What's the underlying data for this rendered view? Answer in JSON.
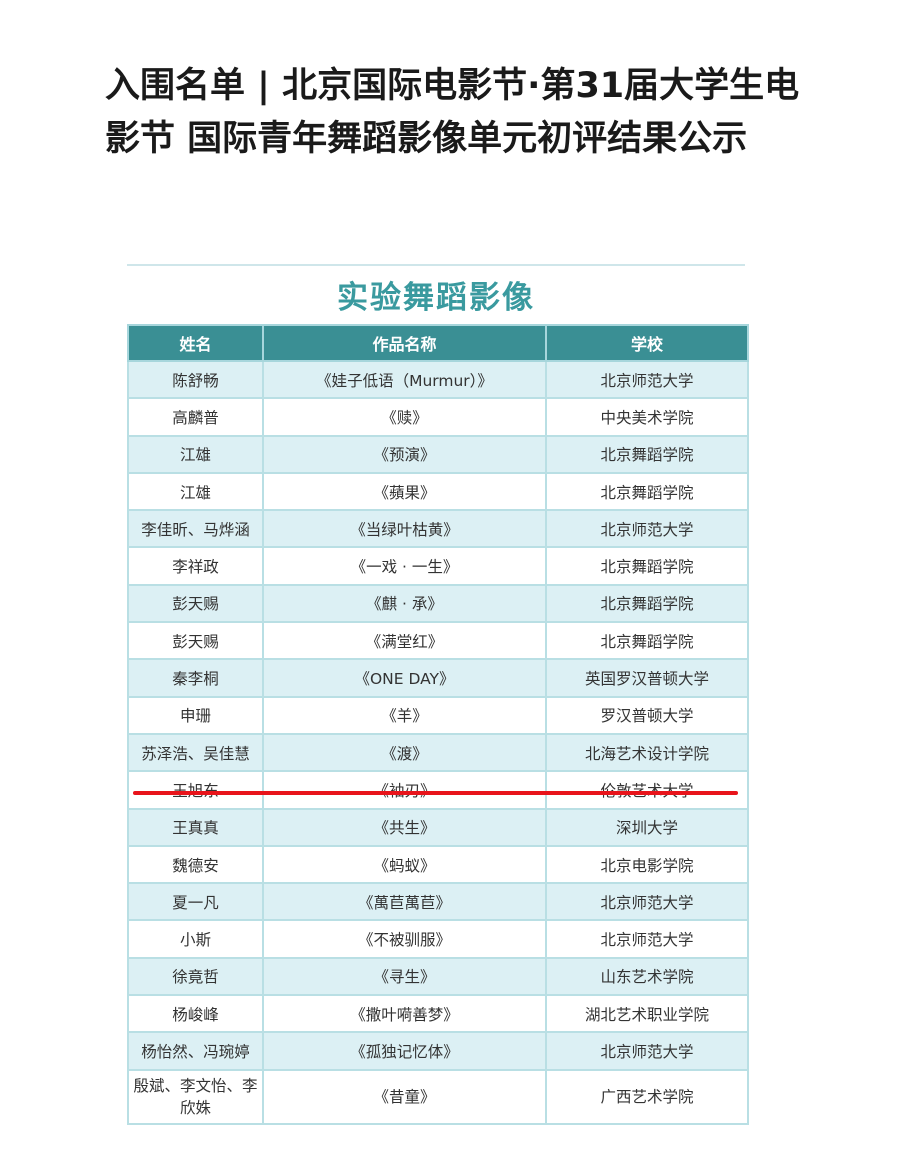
{
  "title": "入围名单 | 北京国际电影节·第31届大学生电影节 国际青年舞蹈影像单元初评结果公示",
  "section_title": "实验舞蹈影像",
  "table": {
    "headers": [
      "姓名",
      "作品名称",
      "学校"
    ],
    "rows": [
      [
        "陈舒畅",
        "《娃子低语（Murmur）》",
        "北京师范大学"
      ],
      [
        "高麟普",
        "《赎》",
        "中央美术学院"
      ],
      [
        "江雄",
        "《预演》",
        "北京舞蹈学院"
      ],
      [
        "江雄",
        "《蘋果》",
        "北京舞蹈学院"
      ],
      [
        "李佳昕、马烨涵",
        "《当绿叶枯黄》",
        "北京师范大学"
      ],
      [
        "李祥政",
        "《一戏 · 一生》",
        "北京舞蹈学院"
      ],
      [
        "彭天赐",
        "《麒 · 承》",
        "北京舞蹈学院"
      ],
      [
        "彭天赐",
        "《满堂红》",
        "北京舞蹈学院"
      ],
      [
        "秦李桐",
        "《ONE DAY》",
        "英国罗汉普顿大学"
      ],
      [
        "申珊",
        "《羊》",
        "罗汉普顿大学"
      ],
      [
        "苏泽浩、吴佳慧",
        "《渡》",
        "北海艺术设计学院"
      ],
      [
        "王旭东",
        "《袖刃》",
        "伦敦艺术大学"
      ],
      [
        "王真真",
        "《共生》",
        "深圳大学"
      ],
      [
        "魏德安",
        "《蚂蚁》",
        "北京电影学院"
      ],
      [
        "夏一凡",
        "《萬苣萬苣》",
        "北京师范大学"
      ],
      [
        "小斯",
        "《不被驯服》",
        "北京师范大学"
      ],
      [
        "徐竟哲",
        "《寻生》",
        "山东艺术学院"
      ],
      [
        "杨峻峰",
        "《撒叶嗬善梦》",
        "湖北艺术职业学院"
      ],
      [
        "杨怡然、冯琬婷",
        "《孤独记忆体》",
        "北京师范大学"
      ],
      [
        "殷斌、李文怡、李欣姝",
        "《昔童》",
        "广西艺术学院"
      ]
    ]
  },
  "highlight_color": "#e8141b",
  "header_color": "#3a8f94",
  "accent_color": "#3a9a9f"
}
